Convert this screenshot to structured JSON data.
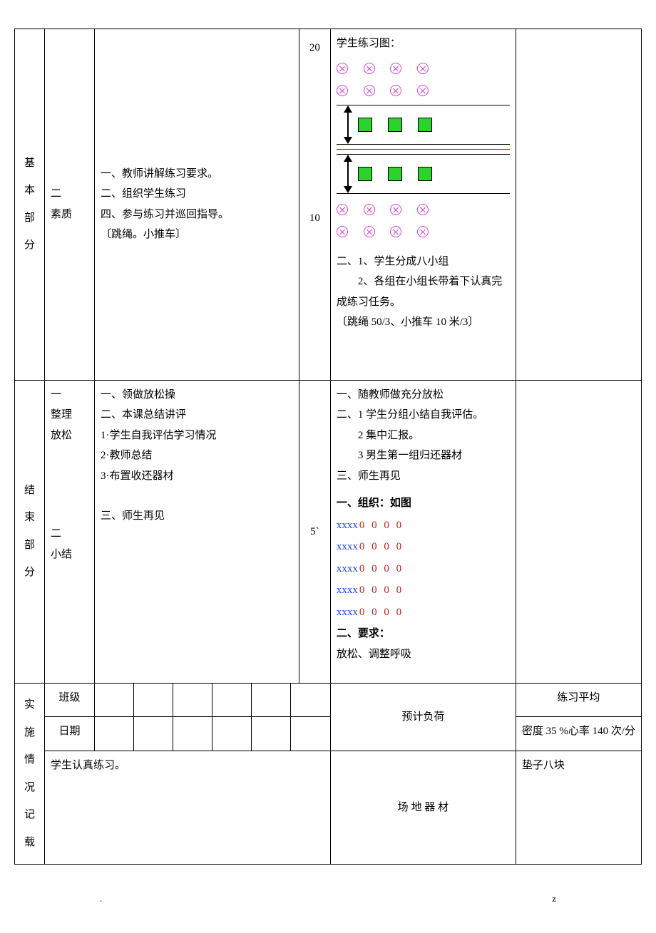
{
  "row1": {
    "section_label": [
      "基",
      "本",
      "部",
      "分"
    ],
    "sub_label_line1": "二",
    "sub_label_line2": "素质",
    "teacher_lines": [
      "一、教师讲解练习要求。",
      "二、组织学生练习",
      "四、参与练习并巡回指导。",
      "〔跳绳。小推车〕"
    ],
    "time_top": "20",
    "time_bottom": "10",
    "student_title": "学生练习图：",
    "student_notes": [
      "二、1、学生分成八小组",
      "　　2、各组在小组长带着下认真完成练习任务。",
      "〔跳绳 50/3、小推车 10 米/3〕"
    ]
  },
  "row2": {
    "section_label": [
      "结",
      "束",
      "部",
      "分"
    ],
    "sub1_line1": "一",
    "sub1_line2": "整理",
    "sub1_line3": "放松",
    "sub2_line1": "二",
    "sub2_line2": "小结",
    "teacher_lines_a": [
      "一、领做放松操",
      "二、本课总结讲评",
      "1·学生自我评估学习情况",
      "2·教师总结",
      "3·布置收还器材"
    ],
    "teacher_lines_b": "三、师生再见",
    "time": "5`",
    "student_lines_a": [
      "一、随教师做充分放松",
      "二、1 学生分组小结自我评估。",
      "　　2 集中汇报。",
      "　　3 男生第一组归还器材",
      "三、师生再见"
    ],
    "org_title": "一、组织：如图",
    "formation_x": "xxxx",
    "formation_o": "0  0  0  0",
    "formation_rows": 5,
    "req_title": "二、要求：",
    "req_body": "放松、调整呼吸"
  },
  "row3": {
    "impl_label": [
      "实",
      "施",
      "情",
      "况",
      "记",
      "载"
    ],
    "class_label": "班级",
    "date_label": "日期",
    "note_text": "学生认真练习。",
    "predict_label": "预计负荷",
    "predict_line1": "练习平均",
    "predict_line2": "密度 35 %心率 140 次/分",
    "venue_label": [
      "场",
      "地",
      "器",
      "材"
    ],
    "venue_text": "垫子八块"
  },
  "footer": {
    "left": ".",
    "right": "z"
  }
}
